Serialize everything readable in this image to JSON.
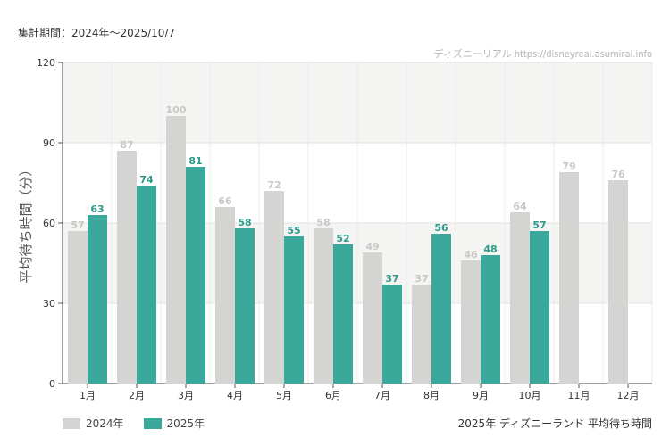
{
  "header": {
    "period_label": "集計期間：2024年～2025/10/7",
    "source_label": "ディズニーリアル https://disneyreal.asumirai.info"
  },
  "footer": {
    "caption": "2025年 ディズニーランド 平均待ち時間"
  },
  "colors": {
    "series_2024": "#d4d4d2",
    "series_2024_label": "#c8c8c6",
    "series_2025": "#3aa89b",
    "series_2025_label": "#2e9a8c",
    "band": "#f4f4f3"
  },
  "chart_data": {
    "type": "bar",
    "ylabel": "平均待ち時間（分）",
    "xlabel": "",
    "ylim": [
      0,
      120
    ],
    "yticks": [
      0,
      30,
      60,
      90,
      120
    ],
    "categories": [
      "1月",
      "2月",
      "3月",
      "4月",
      "5月",
      "6月",
      "7月",
      "8月",
      "9月",
      "10月",
      "11月",
      "12月"
    ],
    "series": [
      {
        "name": "2024年",
        "values": [
          57,
          87,
          100,
          66,
          72,
          58,
          49,
          37,
          46,
          64,
          79,
          76
        ]
      },
      {
        "name": "2025年",
        "values": [
          63,
          74,
          81,
          58,
          55,
          52,
          37,
          56,
          48,
          57,
          null,
          null
        ]
      }
    ],
    "grid": true,
    "legend_position": "bottom-left"
  }
}
